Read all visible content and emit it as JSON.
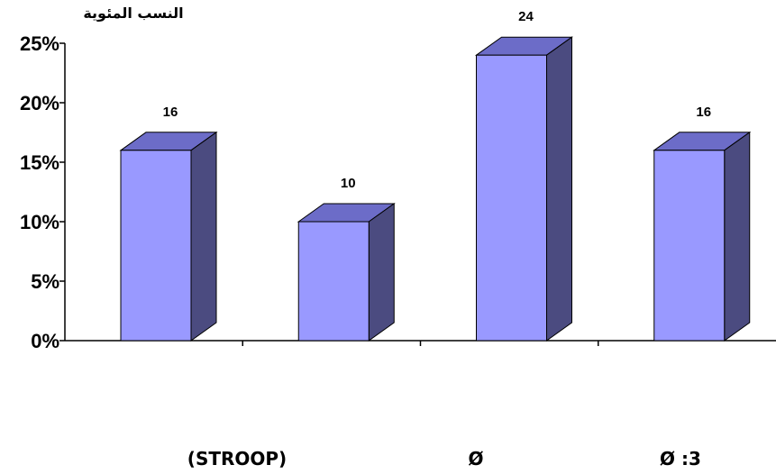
{
  "colors": {
    "bar_front": "#9999FF",
    "bar_top": "#6C6CC8",
    "bar_side": "#4B4B80",
    "axis": "#000000"
  },
  "chart_data": {
    "type": "bar",
    "ylabel": "النسب المئوية",
    "categories": [
      "(STROOP)",
      "Ø",
      "Ø   :3",
      ""
    ],
    "values": [
      16,
      10,
      24,
      16
    ],
    "data_labels": [
      "16",
      "10",
      "24",
      "16"
    ],
    "ylim": [
      0,
      25
    ],
    "y_ticks": [
      "0%",
      "5%",
      "10%",
      "15%",
      "20%",
      "25%"
    ],
    "grid": false,
    "legend": "none",
    "style": "3d"
  }
}
